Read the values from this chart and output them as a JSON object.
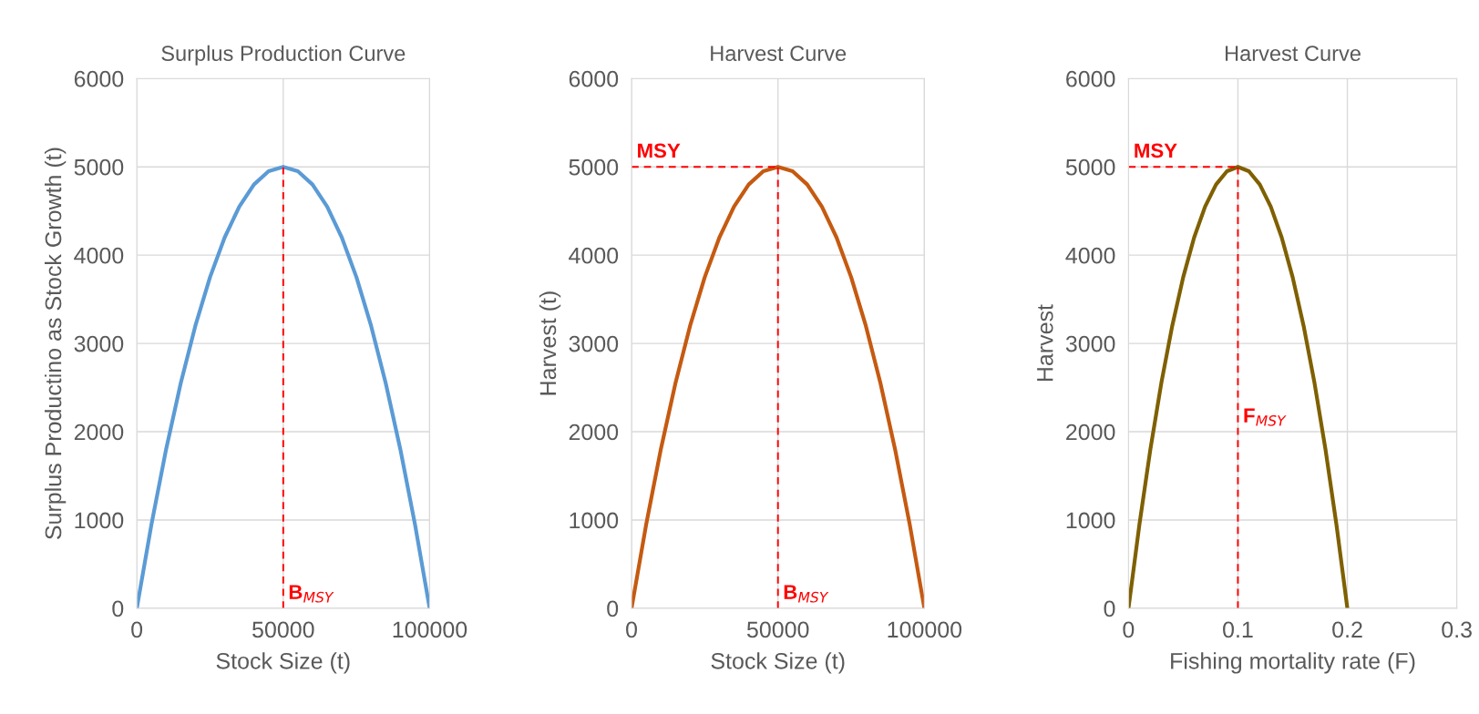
{
  "chart_data": [
    {
      "type": "line",
      "title": "Surplus Production Curve",
      "xlabel": "Stock Size (t)",
      "ylabel": "Surplus Productino as Stock Growth (t)",
      "xlim": [
        0,
        100000
      ],
      "xticks": [
        0,
        50000,
        100000
      ],
      "ylim": [
        0,
        6000
      ],
      "yticks": [
        0,
        1000,
        2000,
        3000,
        4000,
        5000,
        6000
      ],
      "grid": true,
      "legend": false,
      "series": [
        {
          "color": "#5b9bd5",
          "x": [
            0,
            5000,
            10000,
            15000,
            20000,
            25000,
            30000,
            35000,
            40000,
            45000,
            50000,
            55000,
            60000,
            65000,
            70000,
            75000,
            80000,
            85000,
            90000,
            95000,
            100000
          ],
          "values": [
            0,
            950,
            1800,
            2550,
            3200,
            3750,
            4200,
            4550,
            4800,
            4950,
            5000,
            4950,
            4800,
            4550,
            4200,
            3750,
            3200,
            2550,
            1800,
            950,
            0
          ]
        },
        {
          "color": "#ff0000",
          "line_style": "dashed",
          "x": [
            50000,
            50000
          ],
          "values": [
            0,
            5000
          ]
        }
      ],
      "annotations": [
        {
          "text": "B$_{MSY}$",
          "x": 50000,
          "y": 0
        }
      ]
    },
    {
      "type": "line",
      "title": "Harvest Curve",
      "xlabel": "Stock Size (t)",
      "ylabel": "Harvest (t)",
      "xlim": [
        0,
        100000
      ],
      "xticks": [
        0,
        50000,
        100000
      ],
      "ylim": [
        0,
        6000
      ],
      "yticks": [
        0,
        1000,
        2000,
        3000,
        4000,
        5000,
        6000
      ],
      "grid": true,
      "legend": false,
      "series": [
        {
          "color": "#c55a11",
          "x": [
            0,
            5000,
            10000,
            15000,
            20000,
            25000,
            30000,
            35000,
            40000,
            45000,
            50000,
            55000,
            60000,
            65000,
            70000,
            75000,
            80000,
            85000,
            90000,
            95000,
            100000
          ],
          "values": [
            0,
            950,
            1800,
            2550,
            3200,
            3750,
            4200,
            4550,
            4800,
            4950,
            5000,
            4950,
            4800,
            4550,
            4200,
            3750,
            3200,
            2550,
            1800,
            950,
            0
          ]
        },
        {
          "color": "#ff0000",
          "line_style": "dashed",
          "x": [
            50000,
            50000
          ],
          "values": [
            0,
            5000
          ]
        },
        {
          "color": "#ff0000",
          "line_style": "dashed",
          "x": [
            0,
            50000
          ],
          "values": [
            5000,
            5000
          ]
        }
      ],
      "annotations": [
        {
          "text": "B$_{MSY}$",
          "x": 50000,
          "y": 0
        },
        {
          "text": "MSY",
          "x": 0,
          "y": 5000
        }
      ]
    },
    {
      "type": "line",
      "title": "Harvest Curve",
      "xlabel": "Fishing mortality rate (F)",
      "ylabel": "Harvest",
      "xlim": [
        0,
        0.3
      ],
      "xticks": [
        0,
        0.1,
        0.2,
        0.3
      ],
      "ylim": [
        0,
        6000
      ],
      "yticks": [
        0,
        1000,
        2000,
        3000,
        4000,
        5000,
        6000
      ],
      "grid": true,
      "legend": false,
      "series": [
        {
          "color": "#7f6000",
          "x": [
            0,
            0.01,
            0.02,
            0.03,
            0.04,
            0.05,
            0.06,
            0.07,
            0.08,
            0.09,
            0.1,
            0.11,
            0.12,
            0.13,
            0.14,
            0.15,
            0.16,
            0.17,
            0.18,
            0.19,
            0.2
          ],
          "values": [
            0,
            950,
            1800,
            2550,
            3200,
            3750,
            4200,
            4550,
            4800,
            4950,
            5000,
            4950,
            4800,
            4550,
            4200,
            3750,
            3200,
            2550,
            1800,
            950,
            0
          ]
        },
        {
          "color": "#ff0000",
          "line_style": "dashed",
          "x": [
            0.1,
            0.1
          ],
          "values": [
            0,
            5000
          ]
        },
        {
          "color": "#ff0000",
          "line_style": "dashed",
          "x": [
            0,
            0.1
          ],
          "values": [
            5000,
            5000
          ]
        }
      ],
      "annotations": [
        {
          "text": "F$_{MSY}$",
          "x": 0.1,
          "y": 2000
        },
        {
          "text": "MSY",
          "x": 0,
          "y": 5000
        }
      ]
    }
  ]
}
